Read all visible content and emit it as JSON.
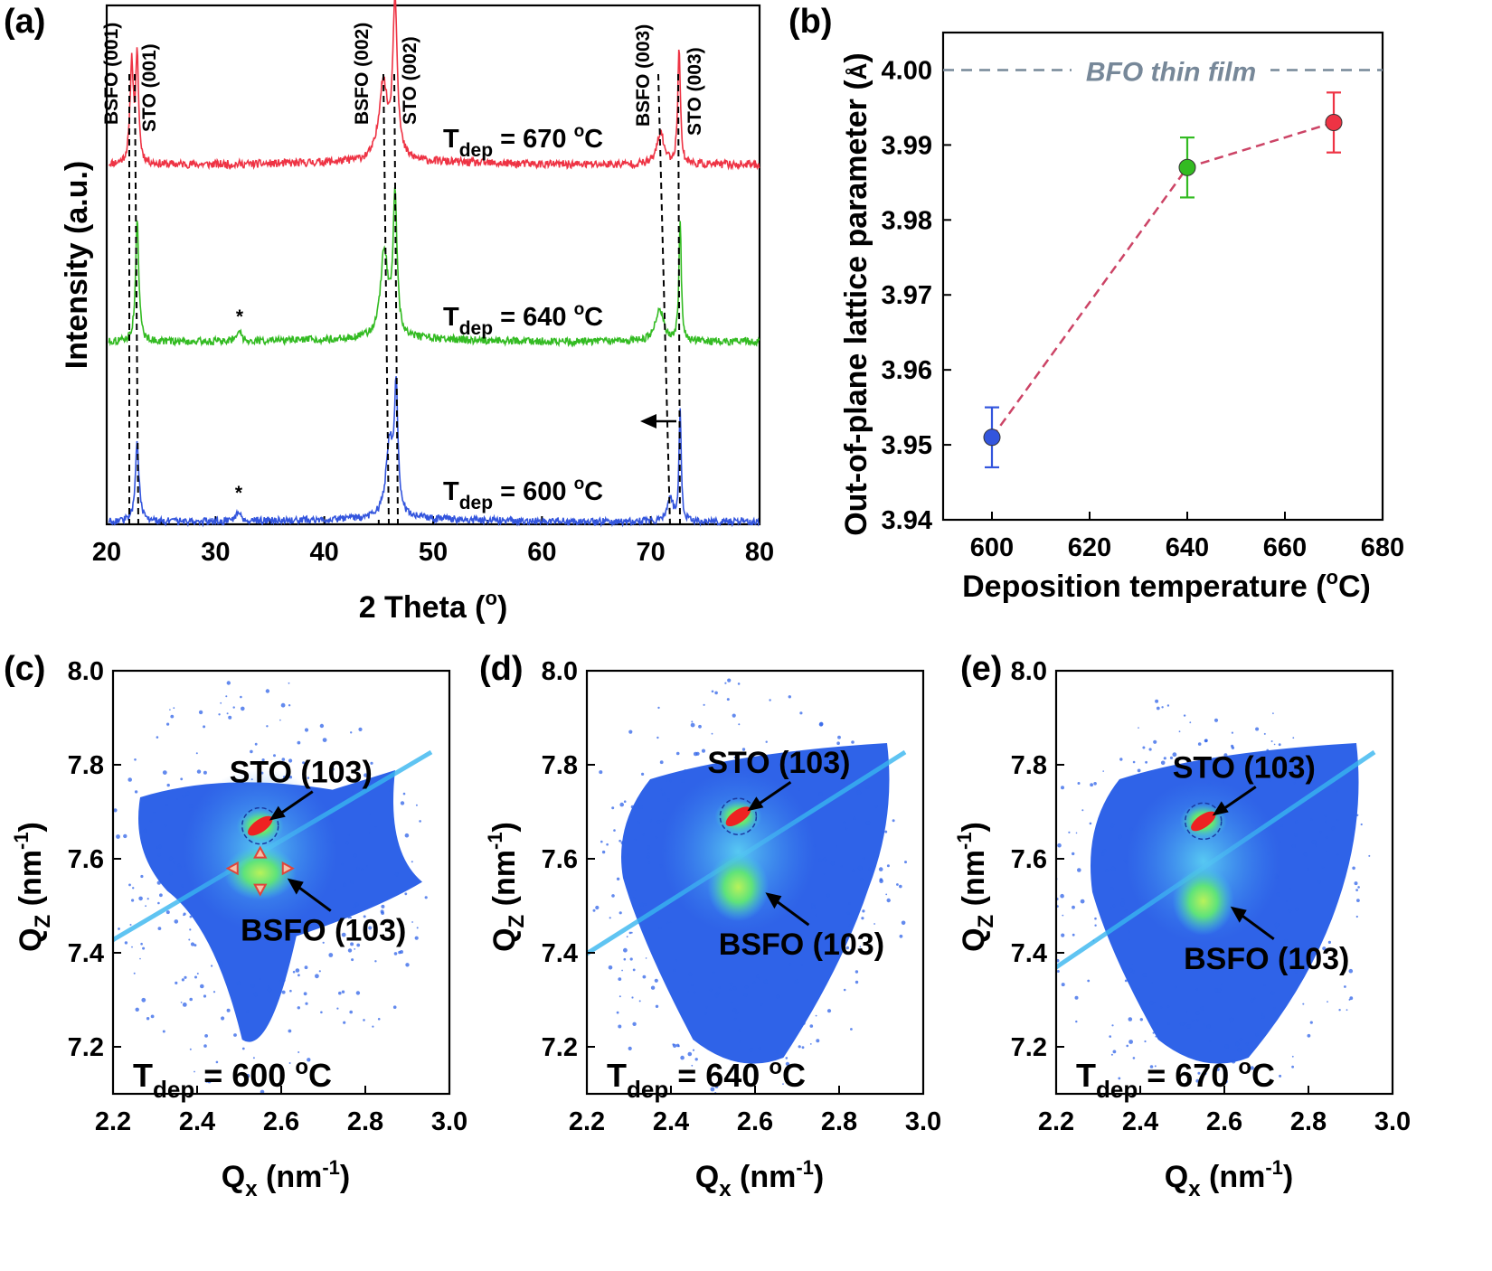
{
  "colors": {
    "red": "#ee3344",
    "green": "#33bb22",
    "blue": "#3355dd",
    "ref_line": "#778899",
    "trend_line": "#cc4466",
    "map_base": "#2f63e8",
    "map_mid": "#38b6f0",
    "map_hot": "#7ee63a"
  },
  "chart_data": [
    {
      "panel": "(a)",
      "type": "line",
      "xlabel": "2 Theta (",
      "xlabel_sup": "o",
      "xlabel_tail": ")",
      "ylabel": "Intensity (a.u.)",
      "xlim": [
        20,
        80
      ],
      "xticks": [
        "20",
        "30",
        "40",
        "50",
        "60",
        "70",
        "80"
      ],
      "series": [
        {
          "label_main": "T",
          "label_sub": "dep",
          "label_rest": " = 670 ",
          "label_sup": "o",
          "label_unit": "C",
          "color": "red",
          "peaks": [
            {
              "x": 22.3,
              "h": 0.62,
              "w": 0.18
            },
            {
              "x": 22.8,
              "h": 0.64,
              "w": 0.16
            },
            {
              "x": 45.4,
              "h": 0.48,
              "w": 0.45
            },
            {
              "x": 46.5,
              "h": 0.98,
              "w": 0.25
            },
            {
              "x": 70.9,
              "h": 0.2,
              "w": 0.38
            },
            {
              "x": 72.6,
              "h": 0.74,
              "w": 0.14
            }
          ]
        },
        {
          "label_main": "T",
          "label_sub": "dep",
          "label_rest": " = 640 ",
          "label_sup": "o",
          "label_unit": "C",
          "color": "green",
          "peaks": [
            {
              "x": 22.8,
              "h": 0.8,
              "w": 0.18
            },
            {
              "x": 32.1,
              "h": 0.07,
              "w": 0.3
            },
            {
              "x": 45.5,
              "h": 0.58,
              "w": 0.4
            },
            {
              "x": 46.5,
              "h": 0.92,
              "w": 0.22
            },
            {
              "x": 70.8,
              "h": 0.22,
              "w": 0.45
            },
            {
              "x": 72.7,
              "h": 0.78,
              "w": 0.13
            }
          ]
        },
        {
          "label_main": "T",
          "label_sub": "dep",
          "label_rest": " = 600 ",
          "label_sup": "o",
          "label_unit": "C",
          "color": "blue",
          "peaks": [
            {
              "x": 22.8,
              "h": 0.55,
              "w": 0.2
            },
            {
              "x": 32.1,
              "h": 0.07,
              "w": 0.3
            },
            {
              "x": 46.0,
              "h": 0.5,
              "w": 0.4
            },
            {
              "x": 46.6,
              "h": 0.82,
              "w": 0.2
            },
            {
              "x": 71.8,
              "h": 0.16,
              "w": 0.3
            },
            {
              "x": 72.7,
              "h": 0.78,
              "w": 0.12
            }
          ]
        }
      ],
      "peak_labels": [
        "BSFO (001)",
        "STO (001)",
        "BSFO (002)",
        "STO (002)",
        "BSFO (003)",
        "STO (003)"
      ],
      "star": "*"
    },
    {
      "panel": "(b)",
      "type": "scatter",
      "xlabel": "Deposition temperature (",
      "xlabel_sup": "o",
      "xlabel_tail": "C)",
      "ylabel": "Out-of-plane lattice parameter (",
      "ylabel_unit": "Å",
      "ylabel_tail": ")",
      "xlim": [
        590,
        680
      ],
      "ylim": [
        3.94,
        4.005
      ],
      "xticks": [
        "600",
        "620",
        "640",
        "660",
        "680"
      ],
      "yticks": [
        "3.94",
        "3.95",
        "3.96",
        "3.97",
        "3.98",
        "3.99",
        "4.00"
      ],
      "points": [
        {
          "x": 600,
          "y": 3.951,
          "err": 0.004,
          "color": "blue"
        },
        {
          "x": 640,
          "y": 3.987,
          "err": 0.004,
          "color": "green"
        },
        {
          "x": 670,
          "y": 3.993,
          "err": 0.004,
          "color": "red"
        }
      ],
      "reference": {
        "y": 4.0,
        "label": "BFO thin film"
      }
    },
    {
      "panel": "(c)",
      "type": "heatmap",
      "xlabel_main": "Q",
      "xlabel_sub": "x",
      "xlabel_rest": " (nm",
      "xlabel_sup": "-1",
      "xlabel_tail": ")",
      "ylabel_main": "Q",
      "ylabel_sub": "Z",
      "ylabel_rest": " (nm",
      "ylabel_sup": "-1",
      "ylabel_tail": ")",
      "xlim": [
        2.2,
        3.0
      ],
      "ylim": [
        7.1,
        8.0
      ],
      "xticks": [
        "2.2",
        "2.4",
        "2.6",
        "2.8",
        "3.0"
      ],
      "yticks": [
        "7.2",
        "7.4",
        "7.6",
        "7.8",
        "8.0"
      ],
      "sto_peak": {
        "qx": 2.55,
        "qz": 7.67,
        "label": "STO (103)"
      },
      "bsfo_peak": {
        "qx": 2.55,
        "qz": 7.57,
        "label": "BSFO (103)"
      },
      "tdep": {
        "main": "T",
        "sub": "dep",
        "rest": " = 600 ",
        "sup": "o",
        "unit": "C"
      }
    },
    {
      "panel": "(d)",
      "type": "heatmap",
      "xlabel_main": "Q",
      "xlabel_sub": "x",
      "xlabel_rest": " (nm",
      "xlabel_sup": "-1",
      "xlabel_tail": ")",
      "ylabel_main": "Q",
      "ylabel_sub": "Z",
      "ylabel_rest": " (nm",
      "ylabel_sup": "-1",
      "ylabel_tail": ")",
      "xlim": [
        2.2,
        3.0
      ],
      "ylim": [
        7.1,
        8.0
      ],
      "xticks": [
        "2.2",
        "2.4",
        "2.6",
        "2.8",
        "3.0"
      ],
      "yticks": [
        "7.2",
        "7.4",
        "7.6",
        "7.8",
        "8.0"
      ],
      "sto_peak": {
        "qx": 2.56,
        "qz": 7.69,
        "label": "STO (103)"
      },
      "bsfo_peak": {
        "qx": 2.56,
        "qz": 7.54,
        "label": "BSFO (103)"
      },
      "tdep": {
        "main": "T",
        "sub": "dep",
        "rest": " = 640 ",
        "sup": "o",
        "unit": "C"
      }
    },
    {
      "panel": "(e)",
      "type": "heatmap",
      "xlabel_main": "Q",
      "xlabel_sub": "x",
      "xlabel_rest": " (nm",
      "xlabel_sup": "-1",
      "xlabel_tail": ")",
      "ylabel_main": "Q",
      "ylabel_sub": "Z",
      "ylabel_rest": " (nm",
      "ylabel_sup": "-1",
      "ylabel_tail": ")",
      "xlim": [
        2.2,
        3.0
      ],
      "ylim": [
        7.1,
        8.0
      ],
      "xticks": [
        "2.2",
        "2.4",
        "2.6",
        "2.8",
        "3.0"
      ],
      "yticks": [
        "7.2",
        "7.4",
        "7.6",
        "7.8",
        "8.0"
      ],
      "sto_peak": {
        "qx": 2.55,
        "qz": 7.68,
        "label": "STO (103)"
      },
      "bsfo_peak": {
        "qx": 2.55,
        "qz": 7.51,
        "label": "BSFO (103)"
      },
      "tdep": {
        "main": "T",
        "sub": "dep",
        "rest": " = 670 ",
        "sup": "o",
        "unit": "C"
      }
    }
  ]
}
